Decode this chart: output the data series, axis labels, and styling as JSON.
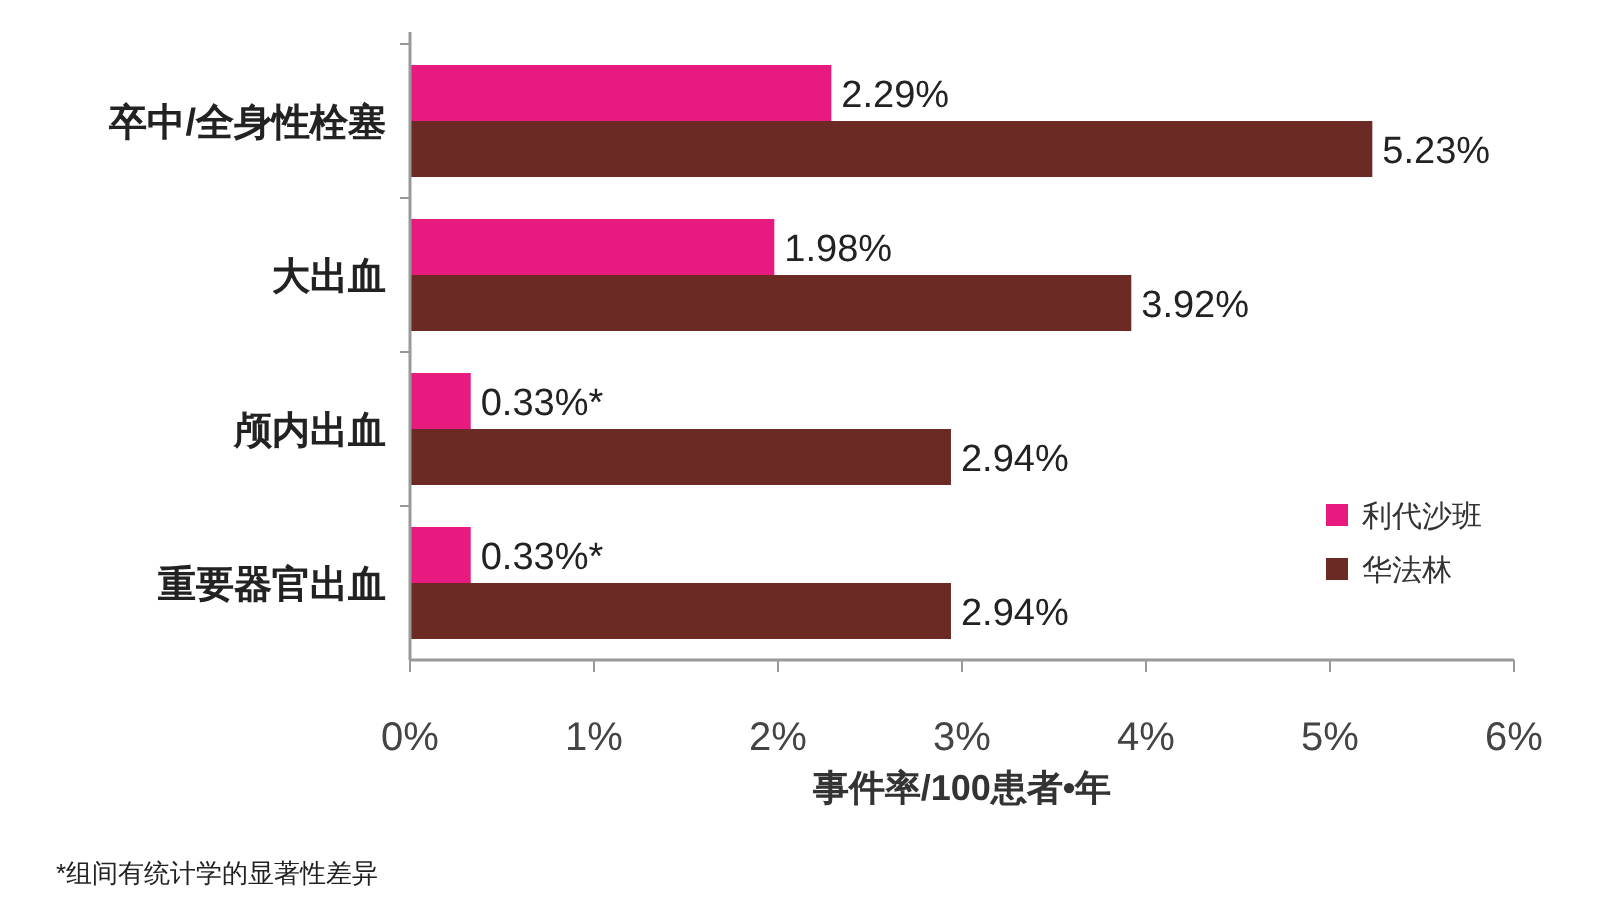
{
  "chart_data": {
    "type": "bar",
    "orientation": "horizontal",
    "categories": [
      "卒中/全身性栓塞",
      "大出血",
      "颅内出血",
      "重要器官出血"
    ],
    "series": [
      {
        "name": "利代沙班",
        "color": "#e8197f",
        "values": [
          2.29,
          1.98,
          0.33,
          0.33
        ],
        "value_labels": [
          "2.29%",
          "1.98%",
          "0.33%*",
          "0.33%*"
        ]
      },
      {
        "name": "华法林",
        "color": "#6b2b24",
        "values": [
          5.23,
          3.92,
          2.94,
          2.94
        ],
        "value_labels": [
          "5.23%",
          "3.92%",
          "2.94%",
          "2.94%"
        ]
      }
    ],
    "xlim": [
      0,
      6
    ],
    "xticks": [
      {
        "value": 0,
        "label": "0%"
      },
      {
        "value": 1,
        "label": "1%"
      },
      {
        "value": 2,
        "label": "2%"
      },
      {
        "value": 3,
        "label": "3%"
      },
      {
        "value": 4,
        "label": "4%"
      },
      {
        "value": 5,
        "label": "5%"
      },
      {
        "value": 6,
        "label": "6%"
      }
    ],
    "xlabel": "事件率/100患者•年",
    "legend": "right",
    "annotations": [
      "*组间有统计学的显著性差异"
    ]
  }
}
